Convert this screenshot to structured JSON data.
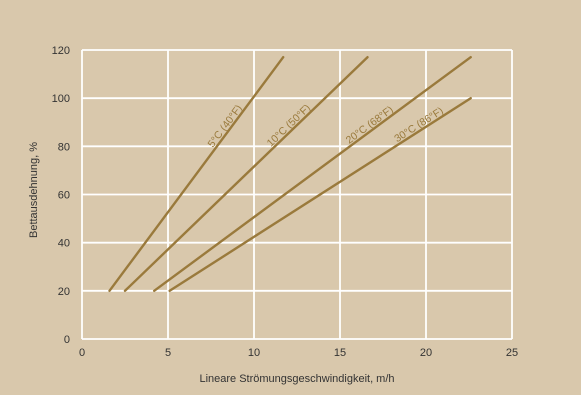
{
  "chart_data": {
    "type": "line",
    "xlabel": "Lineare Strömungsgeschwindigkeit, m/h",
    "ylabel": "Bettausdehnung, %",
    "xlim": [
      0,
      25
    ],
    "ylim": [
      0,
      120
    ],
    "x_ticks": [
      0,
      5,
      10,
      15,
      20,
      25
    ],
    "y_ticks": [
      0,
      20,
      40,
      60,
      80,
      100,
      120
    ],
    "grid": true,
    "series": [
      {
        "name": "5°C (40°F)",
        "x": [
          1.6,
          11.7
        ],
        "y": [
          20,
          117
        ]
      },
      {
        "name": "10°C (50°F)",
        "x": [
          2.5,
          16.6
        ],
        "y": [
          20,
          117
        ]
      },
      {
        "name": "20°C (68°F)",
        "x": [
          4.2,
          22.6
        ],
        "y": [
          20,
          117
        ]
      },
      {
        "name": "30°C (86°F)",
        "x": [
          5.1,
          22.6
        ],
        "y": [
          20,
          100
        ]
      }
    ]
  },
  "colors": {
    "background": "#d9c8ac",
    "grid": "#ffffff",
    "series": "#9a7a3c",
    "text": "#333333"
  }
}
